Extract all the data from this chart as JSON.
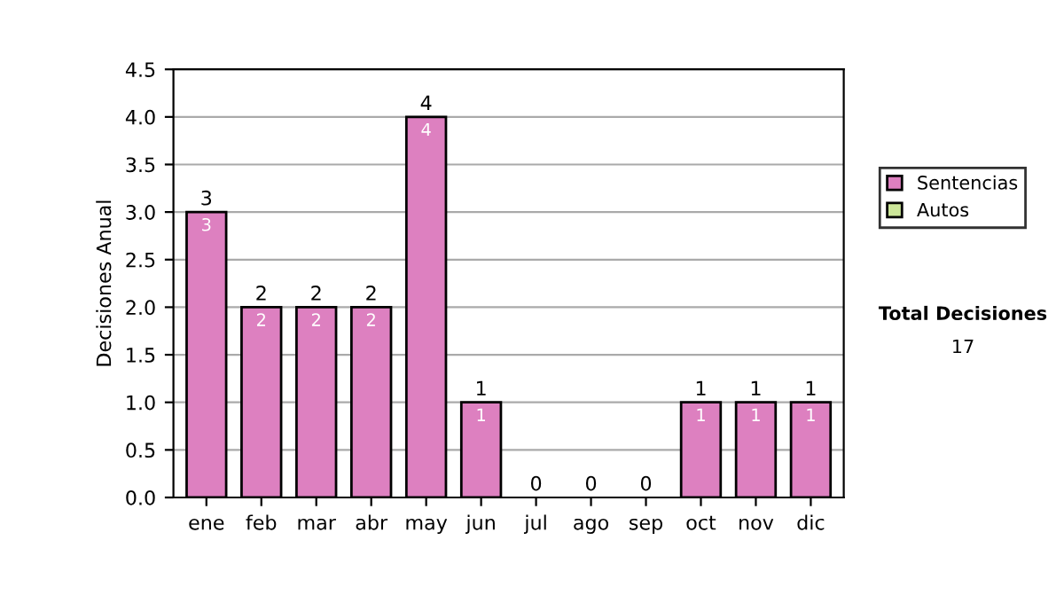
{
  "chart_data": {
    "type": "bar",
    "ylabel": "Decisiones Anual",
    "categories": [
      "ene",
      "feb",
      "mar",
      "abr",
      "may",
      "jun",
      "jul",
      "ago",
      "sep",
      "oct",
      "nov",
      "dic"
    ],
    "series": [
      {
        "name": "Sentencias",
        "color": "#dd80c0",
        "values": [
          3,
          2,
          2,
          2,
          4,
          1,
          0,
          0,
          0,
          1,
          1,
          1
        ],
        "value_labels": [
          "3",
          "2",
          "2",
          "2",
          "4",
          "1",
          null,
          null,
          null,
          "1",
          "1",
          "1"
        ]
      },
      {
        "name": "Autos",
        "color": "#cce699",
        "values": [
          0,
          0,
          0,
          0,
          0,
          0,
          0,
          0,
          0,
          0,
          0,
          0
        ]
      }
    ],
    "stacked": true,
    "totals": [
      "3",
      "2",
      "2",
      "2",
      "4",
      "1",
      "0",
      "0",
      "0",
      "1",
      "1",
      "1"
    ],
    "ylim": [
      0,
      4.5
    ],
    "yticks": [
      "0.0",
      "0.5",
      "1.0",
      "1.5",
      "2.0",
      "2.5",
      "3.0",
      "3.5",
      "4.0",
      "4.5"
    ],
    "grid": "y",
    "legend": "right",
    "annotations": [
      "Total Decisiones",
      "17"
    ]
  }
}
